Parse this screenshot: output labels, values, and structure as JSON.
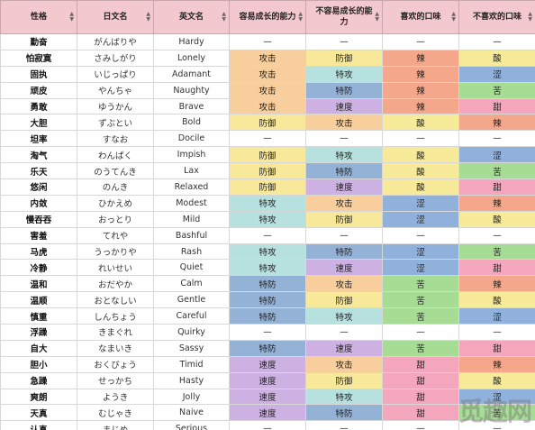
{
  "headers": [
    "性格",
    "日文名",
    "英文名",
    "容易成长的能力",
    "不容易成长的能力",
    "喜欢的口味",
    "不喜欢的口味"
  ],
  "colors": {
    "攻击": "#f8cf9c",
    "防御": "#f7e89a",
    "特攻": "#b6e1de",
    "特防": "#94b1d6",
    "速度": "#cdb1e3",
    "辣": "#f4a78a",
    "酸": "#f7ea98",
    "涩": "#8fb1dc",
    "苦": "#a6dc93",
    "甜": "#f4a6bd",
    "—": "#ffffff"
  },
  "rows": [
    [
      "勤奋",
      "がんばりや",
      "Hardy",
      "—",
      "—",
      "—",
      "—"
    ],
    [
      "怕寂寞",
      "さみしがり",
      "Lonely",
      "攻击",
      "防御",
      "辣",
      "酸"
    ],
    [
      "固执",
      "いじっぱり",
      "Adamant",
      "攻击",
      "特攻",
      "辣",
      "涩"
    ],
    [
      "顽皮",
      "やんちゃ",
      "Naughty",
      "攻击",
      "特防",
      "辣",
      "苦"
    ],
    [
      "勇敢",
      "ゆうかん",
      "Brave",
      "攻击",
      "速度",
      "辣",
      "甜"
    ],
    [
      "大胆",
      "ずぶとい",
      "Bold",
      "防御",
      "攻击",
      "酸",
      "辣"
    ],
    [
      "坦率",
      "すなお",
      "Docile",
      "—",
      "—",
      "—",
      "—"
    ],
    [
      "淘气",
      "わんぱく",
      "Impish",
      "防御",
      "特攻",
      "酸",
      "涩"
    ],
    [
      "乐天",
      "のうてんき",
      "Lax",
      "防御",
      "特防",
      "酸",
      "苦"
    ],
    [
      "悠闲",
      "のんき",
      "Relaxed",
      "防御",
      "速度",
      "酸",
      "甜"
    ],
    [
      "内敛",
      "ひかえめ",
      "Modest",
      "特攻",
      "攻击",
      "涩",
      "辣"
    ],
    [
      "慢吞吞",
      "おっとり",
      "Mild",
      "特攻",
      "防御",
      "涩",
      "酸"
    ],
    [
      "害羞",
      "てれや",
      "Bashful",
      "—",
      "—",
      "—",
      "—"
    ],
    [
      "马虎",
      "うっかりや",
      "Rash",
      "特攻",
      "特防",
      "涩",
      "苦"
    ],
    [
      "冷静",
      "れいせい",
      "Quiet",
      "特攻",
      "速度",
      "涩",
      "甜"
    ],
    [
      "温和",
      "おだやか",
      "Calm",
      "特防",
      "攻击",
      "苦",
      "辣"
    ],
    [
      "温顺",
      "おとなしい",
      "Gentle",
      "特防",
      "防御",
      "苦",
      "酸"
    ],
    [
      "慎重",
      "しんちょう",
      "Careful",
      "特防",
      "特攻",
      "苦",
      "涩"
    ],
    [
      "浮躁",
      "きまぐれ",
      "Quirky",
      "—",
      "—",
      "—",
      "—"
    ],
    [
      "自大",
      "なまいき",
      "Sassy",
      "特防",
      "速度",
      "苦",
      "甜"
    ],
    [
      "胆小",
      "おくびょう",
      "Timid",
      "速度",
      "攻击",
      "甜",
      "辣"
    ],
    [
      "急躁",
      "せっかち",
      "Hasty",
      "速度",
      "防御",
      "甜",
      "酸"
    ],
    [
      "爽朗",
      "ようき",
      "Jolly",
      "速度",
      "特攻",
      "甜",
      "涩"
    ],
    [
      "天真",
      "むじゃき",
      "Naive",
      "速度",
      "特防",
      "甜",
      "苦"
    ],
    [
      "认真",
      "まじめ",
      "Serious",
      "—",
      "—",
      "—",
      "—"
    ]
  ],
  "watermark": "觅趣网"
}
